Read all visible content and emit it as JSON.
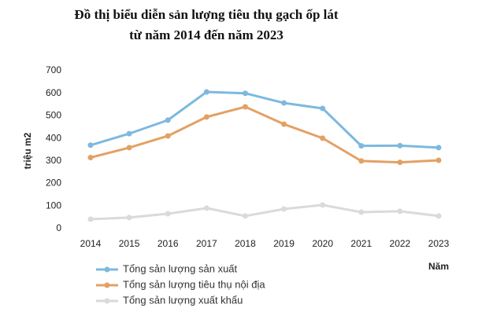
{
  "chart_data": {
    "type": "line",
    "title": [
      "Đồ thị biểu diễn sản lượng tiêu thụ gạch ốp lát",
      "từ năm 2014 đến năm 2023"
    ],
    "y_label": "triệu m2",
    "x_label": "Năm",
    "categories": [
      "2014",
      "2015",
      "2016",
      "2017",
      "2018",
      "2019",
      "2020",
      "2021",
      "2022",
      "2023"
    ],
    "series": [
      {
        "name": "Tổng sản lượng sản xuất",
        "color": "#7db9de",
        "values": [
          370,
          421,
          481,
          606,
          600,
          557,
          533,
          367,
          368,
          359
        ]
      },
      {
        "name": "Tổng sản lượng tiêu thụ nội địa",
        "color": "#e3a164",
        "values": [
          315,
          359,
          411,
          495,
          540,
          463,
          401,
          300,
          294,
          303
        ]
      },
      {
        "name": "Tổng sản lượng xuất khẩu",
        "color": "#dadada",
        "values": [
          42,
          49,
          66,
          91,
          56,
          87,
          105,
          73,
          77,
          56
        ]
      }
    ],
    "ylim": [
      0,
      700
    ],
    "yticks": [
      0,
      100,
      200,
      300,
      400,
      500,
      600,
      700
    ],
    "grid": false
  }
}
